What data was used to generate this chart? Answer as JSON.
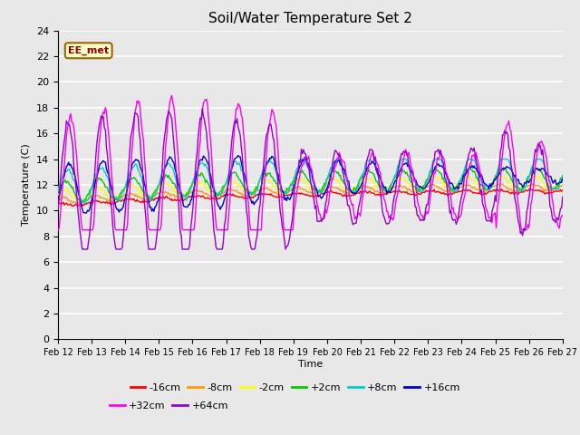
{
  "title": "Soil/Water Temperature Set 2",
  "xlabel": "Time",
  "ylabel": "Temperature (C)",
  "ylim": [
    0,
    24
  ],
  "yticks": [
    0,
    2,
    4,
    6,
    8,
    10,
    12,
    14,
    16,
    18,
    20,
    22,
    24
  ],
  "x_labels": [
    "Feb 12",
    "Feb 13",
    "Feb 14",
    "Feb 15",
    "Feb 16",
    "Feb 17",
    "Feb 18",
    "Feb 19",
    "Feb 20",
    "Feb 21",
    "Feb 22",
    "Feb 23",
    "Feb 24",
    "Feb 25",
    "Feb 26",
    "Feb 27"
  ],
  "annotation_text": "EE_met",
  "annotation_bg": "#ffffcc",
  "annotation_border": "#996600",
  "series_labels": [
    "-16cm",
    "-8cm",
    "-2cm",
    "+2cm",
    "+8cm",
    "+16cm",
    "+32cm",
    "+64cm"
  ],
  "series_colors": [
    "#ff0000",
    "#ff9900",
    "#ffff00",
    "#00cc00",
    "#00cccc",
    "#0000cc",
    "#ff00ff",
    "#9900cc"
  ],
  "bg_color": "#e8e8e8",
  "grid_color": "#ffffff"
}
